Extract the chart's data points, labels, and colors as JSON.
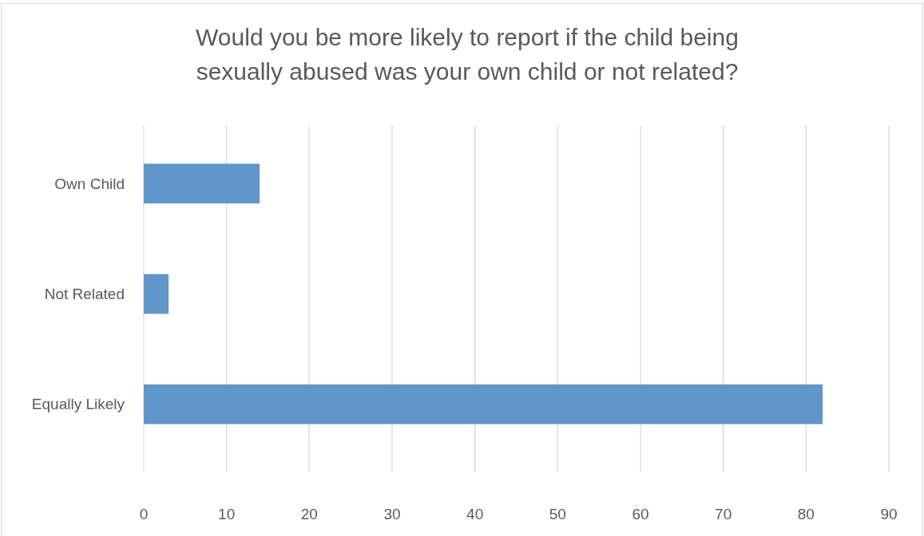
{
  "chart_data": {
    "type": "bar",
    "orientation": "horizontal",
    "title": "Would you be more likely to report if the child being sexually abused was your own child or not related?",
    "categories": [
      "Own Child",
      "Not Related",
      "Equally Likely"
    ],
    "values": [
      14,
      3,
      82
    ],
    "color": "#6096c9",
    "xlim": [
      0,
      90
    ],
    "xticks": [
      0,
      10,
      20,
      30,
      40,
      50,
      60,
      70,
      80,
      90
    ],
    "grid": "x"
  }
}
